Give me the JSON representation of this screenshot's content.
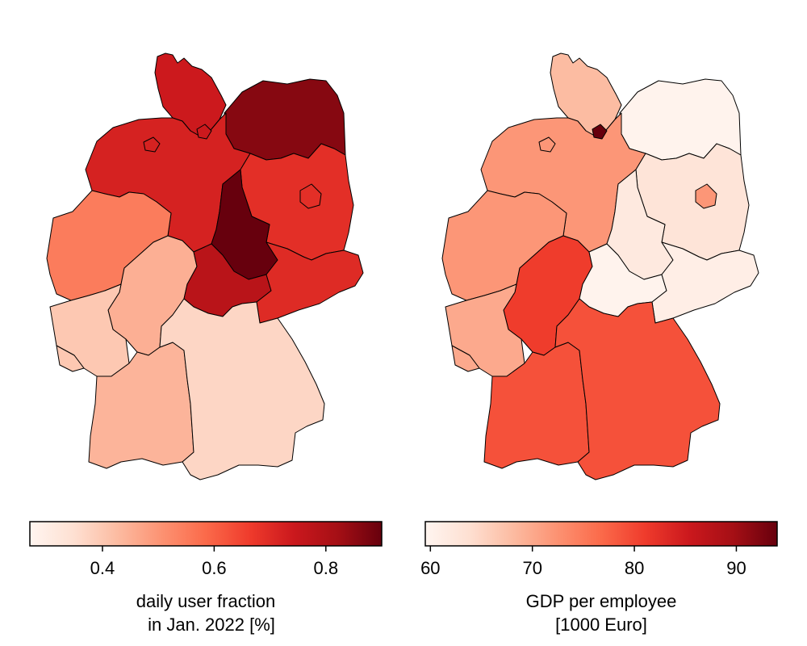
{
  "colormap": {
    "name": "Reds",
    "stops": [
      "#fff5f0",
      "#fee0d2",
      "#fcbba1",
      "#fc9272",
      "#fb6a4a",
      "#ef3b2c",
      "#cb181d",
      "#a50f15",
      "#67000d"
    ]
  },
  "maps": [
    {
      "id": "left",
      "colorbar": {
        "min": 0.27,
        "max": 0.9,
        "ticks": [
          0.4,
          0.6,
          0.8
        ],
        "tick_labels": [
          "0.4",
          "0.6",
          "0.8"
        ],
        "label_line1": "daily user fraction",
        "label_line2": "in Jan. 2022 [%]"
      },
      "regions": {
        "schleswig-holstein": 0.74,
        "hamburg": 0.74,
        "mecklenburg-vorpommern": 0.86,
        "niedersachsen": 0.72,
        "bremen": 0.72,
        "brandenburg": 0.69,
        "berlin": 0.69,
        "sachsen-anhalt": 0.9,
        "nordrhein-westfalen": 0.55,
        "hessen": 0.45,
        "thueringen": 0.78,
        "sachsen": 0.7,
        "rheinland-pfalz": 0.4,
        "saarland": 0.4,
        "baden-wuerttemberg": 0.44,
        "bayern": 0.37
      }
    },
    {
      "id": "right",
      "colorbar": {
        "min": 59.5,
        "max": 94,
        "ticks": [
          60,
          70,
          80,
          90
        ],
        "tick_labels": [
          "60",
          "70",
          "80",
          "90"
        ],
        "label_line1": "GDP per employee",
        "label_line2": "[1000 Euro]"
      },
      "regions": {
        "schleswig-holstein": 68,
        "hamburg": 94,
        "mecklenburg-vorpommern": 60,
        "niedersachsen": 72,
        "bremen": 72,
        "brandenburg": 63,
        "berlin": 72,
        "sachsen-anhalt": 62,
        "nordrhein-westfalen": 72,
        "hessen": 81,
        "thueringen": 60,
        "sachsen": 61,
        "rheinland-pfalz": 70,
        "saarland": 70,
        "baden-wuerttemberg": 79,
        "bayern": 79
      }
    }
  ]
}
